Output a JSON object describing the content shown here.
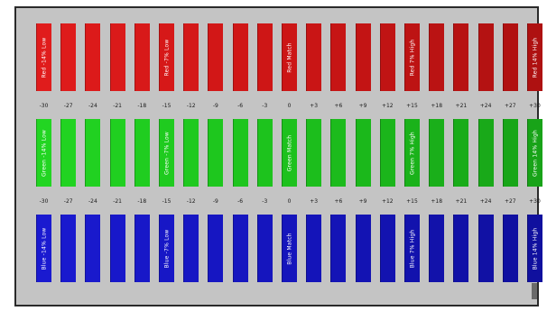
{
  "red_row": {
    "bars": [
      {
        "label": "Red -14% Low",
        "color": "#e01c1c"
      },
      {
        "label": "",
        "color": "#de1b1b"
      },
      {
        "label": "",
        "color": "#dc1a1a"
      },
      {
        "label": "",
        "color": "#da1a1a"
      },
      {
        "label": "",
        "color": "#d81919"
      },
      {
        "label": "Red -7% Low",
        "color": "#d61818"
      },
      {
        "label": "",
        "color": "#d41818"
      },
      {
        "label": "",
        "color": "#d21717"
      },
      {
        "label": "",
        "color": "#d01717"
      },
      {
        "label": "",
        "color": "#ce1616"
      },
      {
        "label": "Red Match",
        "color": "#cc1616"
      },
      {
        "label": "",
        "color": "#c91515"
      },
      {
        "label": "",
        "color": "#c61515"
      },
      {
        "label": "",
        "color": "#c31414"
      },
      {
        "label": "",
        "color": "#c01414"
      },
      {
        "label": "Red 7% High",
        "color": "#bd1313"
      },
      {
        "label": "",
        "color": "#ba1313"
      },
      {
        "label": "",
        "color": "#b71212"
      },
      {
        "label": "",
        "color": "#b41212"
      },
      {
        "label": "",
        "color": "#b11111"
      },
      {
        "label": "Red 14% High",
        "color": "#ae1111"
      }
    ]
  },
  "red_numbers": [
    "-30",
    "-27",
    "-24",
    "-21",
    "-18",
    "-15",
    "-12",
    "-9",
    "-6",
    "-3",
    "0",
    "+3",
    "+6",
    "+9",
    "+12",
    "+15",
    "+18",
    "+21",
    "+24",
    "+27",
    "+30"
  ],
  "green_row": {
    "bars": [
      {
        "label": "Green -14% Low",
        "color": "#22d522"
      },
      {
        "label": "",
        "color": "#21d321"
      },
      {
        "label": "",
        "color": "#21d121"
      },
      {
        "label": "",
        "color": "#20cf20"
      },
      {
        "label": "",
        "color": "#20cd20"
      },
      {
        "label": "Green -7% Low",
        "color": "#1fcb1f"
      },
      {
        "label": "",
        "color": "#1fc91f"
      },
      {
        "label": "",
        "color": "#1ec71e"
      },
      {
        "label": "",
        "color": "#1ec51e"
      },
      {
        "label": "",
        "color": "#1dc31d"
      },
      {
        "label": "Green Match",
        "color": "#1dc11d"
      },
      {
        "label": "",
        "color": "#1cbe1c"
      },
      {
        "label": "",
        "color": "#1cbb1c"
      },
      {
        "label": "",
        "color": "#1bb81b"
      },
      {
        "label": "",
        "color": "#1bb51b"
      },
      {
        "label": "Green 7% High",
        "color": "#1ab21a"
      },
      {
        "label": "",
        "color": "#1aaf1a"
      },
      {
        "label": "",
        "color": "#19ac19"
      },
      {
        "label": "",
        "color": "#19a919"
      },
      {
        "label": "",
        "color": "#18a618"
      },
      {
        "label": "Green 14% High",
        "color": "#18a318"
      }
    ]
  },
  "green_numbers": [
    "-30",
    "-27",
    "-24",
    "-21",
    "-18",
    "-15",
    "-12",
    "-9",
    "-6",
    "-3",
    "0",
    "+3",
    "+6",
    "+9",
    "+12",
    "+15",
    "+18",
    "+21",
    "+24",
    "+27",
    "+30"
  ],
  "blue_row": {
    "bars": [
      {
        "label": "Blue -14% Low",
        "color": "#1a1ad0"
      },
      {
        "label": "",
        "color": "#1919ce"
      },
      {
        "label": "",
        "color": "#1919cc"
      },
      {
        "label": "",
        "color": "#1818ca"
      },
      {
        "label": "",
        "color": "#1818c8"
      },
      {
        "label": "Blue -7% Low",
        "color": "#1717c6"
      },
      {
        "label": "",
        "color": "#1717c4"
      },
      {
        "label": "",
        "color": "#1616c2"
      },
      {
        "label": "",
        "color": "#1616c0"
      },
      {
        "label": "",
        "color": "#1515be"
      },
      {
        "label": "Blue Match",
        "color": "#1515bc"
      },
      {
        "label": "",
        "color": "#1414b9"
      },
      {
        "label": "",
        "color": "#1414b6"
      },
      {
        "label": "",
        "color": "#1313b3"
      },
      {
        "label": "",
        "color": "#1313b0"
      },
      {
        "label": "Blue 7% High",
        "color": "#1212ad"
      },
      {
        "label": "",
        "color": "#1212aa"
      },
      {
        "label": "",
        "color": "#1111a7"
      },
      {
        "label": "",
        "color": "#1111a4"
      },
      {
        "label": "",
        "color": "#1010a1"
      },
      {
        "label": "Blue 14% High",
        "color": "#10109e"
      }
    ]
  }
}
